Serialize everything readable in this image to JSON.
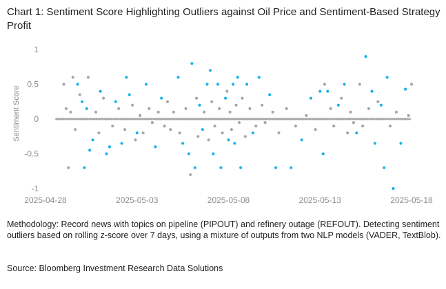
{
  "title": "Chart 1: Sentiment Score Highlighting Outliers against Oil Price and Sentiment-Based Strategy Profit",
  "methodology": "Methodology: Record news with topics on pipeline (PIPOUT) and refinery outage (REFOUT). Detecting sentiment outliers based on rolling z-score over 7 days, using a mixture of outputs from two NLP models (VADER, TextBlob).",
  "source": "Source: Bloomberg Investment Research Data Solutions",
  "colors": {
    "normal": "#a6a6a6",
    "outlier": "#1ab2e8",
    "axis_text": "#8c8c8c",
    "zero_line": "#c8c8c8"
  },
  "chart_data": {
    "type": "scatter",
    "ylabel": "Sentiment Score",
    "ylim": [
      -1,
      1
    ],
    "yticks": [
      "1",
      "0.5",
      "0",
      "-0.5",
      "-1"
    ],
    "xlim": [
      "2025-04-28",
      "2025-05-18"
    ],
    "xticks": [
      "2025-04-28",
      "2025-05-03",
      "2025-05-08",
      "2025-05-13",
      "2025-05-18"
    ],
    "grid": false,
    "series": [
      {
        "role": "outliers",
        "points": [
          [
            "2025-04-29T18:00",
            0.5
          ],
          [
            "2025-04-30T00:00",
            0.25
          ],
          [
            "2025-04-30T03:00",
            -0.7
          ],
          [
            "2025-04-30T06:00",
            0.15
          ],
          [
            "2025-04-30T10:00",
            -0.45
          ],
          [
            "2025-04-30T14:00",
            -0.3
          ],
          [
            "2025-05-01T00:00",
            0.4
          ],
          [
            "2025-05-01T08:00",
            -0.5
          ],
          [
            "2025-05-01T12:00",
            -0.4
          ],
          [
            "2025-05-01T20:00",
            0.25
          ],
          [
            "2025-05-02T04:00",
            -0.35
          ],
          [
            "2025-05-02T10:00",
            0.6
          ],
          [
            "2025-05-02T14:00",
            0.35
          ],
          [
            "2025-05-03T00:00",
            -0.2
          ],
          [
            "2025-05-03T12:00",
            0.5
          ],
          [
            "2025-05-04T00:00",
            -0.4
          ],
          [
            "2025-05-04T08:00",
            0.3
          ],
          [
            "2025-05-05T06:00",
            0.6
          ],
          [
            "2025-05-05T12:00",
            -0.35
          ],
          [
            "2025-05-05T20:00",
            -0.5
          ],
          [
            "2025-05-06T00:00",
            0.8
          ],
          [
            "2025-05-06T04:00",
            -0.7
          ],
          [
            "2025-05-06T10:00",
            0.2
          ],
          [
            "2025-05-06T14:00",
            -0.15
          ],
          [
            "2025-05-06T20:00",
            0.5
          ],
          [
            "2025-05-07T00:00",
            0.7
          ],
          [
            "2025-05-07T04:00",
            -0.5
          ],
          [
            "2025-05-07T10:00",
            0.5
          ],
          [
            "2025-05-07T14:00",
            -0.7
          ],
          [
            "2025-05-07T20:00",
            0.3
          ],
          [
            "2025-05-08T00:00",
            -0.3
          ],
          [
            "2025-05-08T06:00",
            0.5
          ],
          [
            "2025-05-08T08:00",
            -0.35
          ],
          [
            "2025-05-08T12:00",
            0.6
          ],
          [
            "2025-05-08T16:00",
            -0.7
          ],
          [
            "2025-05-09T00:00",
            0.5
          ],
          [
            "2025-05-09T08:00",
            -0.2
          ],
          [
            "2025-05-09T16:00",
            0.6
          ],
          [
            "2025-05-10T06:00",
            0.35
          ],
          [
            "2025-05-10T14:00",
            -0.7
          ],
          [
            "2025-05-11T10:00",
            -0.7
          ],
          [
            "2025-05-12T00:00",
            -0.3
          ],
          [
            "2025-05-12T12:00",
            0.3
          ],
          [
            "2025-05-13T00:00",
            0.4
          ],
          [
            "2025-05-13T04:00",
            -0.5
          ],
          [
            "2025-05-13T10:00",
            0.4
          ],
          [
            "2025-05-14T00:00",
            0.2
          ],
          [
            "2025-05-14T08:00",
            0.5
          ],
          [
            "2025-05-15T00:00",
            -0.2
          ],
          [
            "2025-05-15T12:00",
            0.9
          ],
          [
            "2025-05-15T20:00",
            0.4
          ],
          [
            "2025-05-16T00:00",
            -0.35
          ],
          [
            "2025-05-16T08:00",
            0.2
          ],
          [
            "2025-05-16T12:00",
            -0.7
          ],
          [
            "2025-05-16T16:00",
            0.6
          ],
          [
            "2025-05-17T00:00",
            -1.0
          ],
          [
            "2025-05-17T10:00",
            -0.35
          ],
          [
            "2025-05-17T16:00",
            0.43
          ]
        ]
      },
      {
        "role": "normal",
        "points": [
          [
            "2025-04-29T00:00",
            0.5
          ],
          [
            "2025-04-29T03:00",
            0.15
          ],
          [
            "2025-04-29T06:00",
            -0.7
          ],
          [
            "2025-04-29T09:00",
            0.1
          ],
          [
            "2025-04-29T12:00",
            0.6
          ],
          [
            "2025-04-29T15:00",
            -0.15
          ],
          [
            "2025-04-29T21:00",
            0.35
          ],
          [
            "2025-04-30T08:00",
            0.6
          ],
          [
            "2025-04-30T18:00",
            0.1
          ],
          [
            "2025-04-30T22:00",
            -0.2
          ],
          [
            "2025-05-01T04:00",
            0.3
          ],
          [
            "2025-05-01T16:00",
            -0.1
          ],
          [
            "2025-05-02T00:00",
            0.15
          ],
          [
            "2025-05-02T08:00",
            -0.15
          ],
          [
            "2025-05-02T18:00",
            0.2
          ],
          [
            "2025-05-02T22:00",
            -0.3
          ],
          [
            "2025-05-03T04:00",
            0.05
          ],
          [
            "2025-05-03T08:00",
            -0.2
          ],
          [
            "2025-05-03T16:00",
            0.15
          ],
          [
            "2025-05-03T20:00",
            -0.05
          ],
          [
            "2025-05-04T04:00",
            0.1
          ],
          [
            "2025-05-04T12:00",
            -0.1
          ],
          [
            "2025-05-04T16:00",
            0.25
          ],
          [
            "2025-05-04T20:00",
            -0.15
          ],
          [
            "2025-05-05T00:00",
            0.1
          ],
          [
            "2025-05-05T08:00",
            -0.2
          ],
          [
            "2025-05-05T16:00",
            0.15
          ],
          [
            "2025-05-05T22:00",
            -0.8
          ],
          [
            "2025-05-06T06:00",
            0.3
          ],
          [
            "2025-05-06T08:00",
            -0.25
          ],
          [
            "2025-05-06T16:00",
            0.1
          ],
          [
            "2025-05-06T22:00",
            -0.3
          ],
          [
            "2025-05-07T02:00",
            0.25
          ],
          [
            "2025-05-07T06:00",
            -0.1
          ],
          [
            "2025-05-07T12:00",
            0.15
          ],
          [
            "2025-05-07T16:00",
            -0.2
          ],
          [
            "2025-05-07T22:00",
            0.4
          ],
          [
            "2025-05-08T02:00",
            0.1
          ],
          [
            "2025-05-08T04:00",
            -0.15
          ],
          [
            "2025-05-08T10:00",
            0.2
          ],
          [
            "2025-05-08T14:00",
            -0.05
          ],
          [
            "2025-05-08T18:00",
            0.3
          ],
          [
            "2025-05-08T22:00",
            -0.25
          ],
          [
            "2025-05-09T04:00",
            0.15
          ],
          [
            "2025-05-09T12:00",
            -0.1
          ],
          [
            "2025-05-09T20:00",
            0.2
          ],
          [
            "2025-05-10T00:00",
            -0.05
          ],
          [
            "2025-05-10T10:00",
            0.1
          ],
          [
            "2025-05-10T18:00",
            -0.2
          ],
          [
            "2025-05-11T04:00",
            0.15
          ],
          [
            "2025-05-11T16:00",
            -0.1
          ],
          [
            "2025-05-12T06:00",
            0.05
          ],
          [
            "2025-05-12T18:00",
            -0.15
          ],
          [
            "2025-05-13T06:00",
            0.5
          ],
          [
            "2025-05-13T14:00",
            0.15
          ],
          [
            "2025-05-13T18:00",
            -0.1
          ],
          [
            "2025-05-14T04:00",
            0.3
          ],
          [
            "2025-05-14T12:00",
            -0.2
          ],
          [
            "2025-05-14T16:00",
            0.1
          ],
          [
            "2025-05-14T20:00",
            -0.05
          ],
          [
            "2025-05-15T04:00",
            0.5
          ],
          [
            "2025-05-15T08:00",
            -0.1
          ],
          [
            "2025-05-15T16:00",
            0.15
          ],
          [
            "2025-05-16T04:00",
            0.25
          ],
          [
            "2025-05-16T20:00",
            -0.1
          ],
          [
            "2025-05-17T04:00",
            0.1
          ],
          [
            "2025-05-17T20:00",
            0.05
          ],
          [
            "2025-05-18T00:00",
            0.5
          ]
        ]
      }
    ],
    "baseline_points_note": ""
  }
}
